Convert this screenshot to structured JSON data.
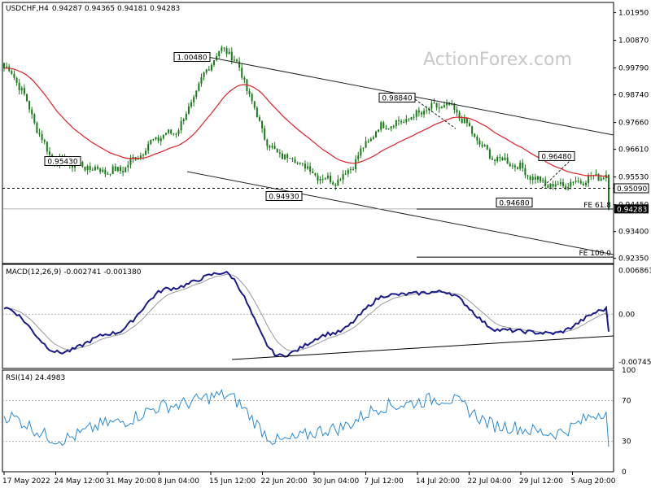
{
  "header": {
    "symbol": "USDCHF,H4",
    "ohlc": "0.94287 0.94365 0.94181 0.94283"
  },
  "watermark": "ActionForex.com",
  "colors": {
    "candle": "#1a7a1a",
    "ma": "#e0202a",
    "trend": "#222222",
    "macd_line": "#1a1a8c",
    "macd_signal": "#9a9a9a",
    "rsi": "#2a8ad6",
    "price_tag_bg": "#000000"
  },
  "price_axis": {
    "ticks": [
      "1.01950",
      "1.00870",
      "0.99790",
      "0.98740",
      "0.97660",
      "0.96610",
      "0.95530",
      "0.94450",
      "0.93400",
      "0.92350"
    ],
    "tick_values": [
      1.0195,
      1.0087,
      0.9979,
      0.9874,
      0.9766,
      0.9661,
      0.9553,
      0.9445,
      0.934,
      0.9235
    ],
    "range": [
      0.9215,
      1.0235
    ],
    "current_level": "0.95090",
    "current_price": "0.94283"
  },
  "annotations": {
    "labels": [
      {
        "text": "1.00480",
        "value": 1.0048,
        "date": "15 Jun"
      },
      {
        "text": "0.98840",
        "value": 0.9884,
        "date": "14 Jul"
      },
      {
        "text": "0.96480",
        "value": 0.9648,
        "date": "2 Aug"
      },
      {
        "text": "0.95430",
        "value": 0.9543,
        "date": "26 May"
      },
      {
        "text": "0.94930",
        "value": 0.9493,
        "date": "30 Jun"
      },
      {
        "text": "0.94680",
        "value": 0.9468,
        "date": "1 Aug"
      }
    ],
    "fib": [
      {
        "text": "FE 61.8",
        "value": 0.9428
      },
      {
        "text": "FE 100.0",
        "value": 0.924
      }
    ]
  },
  "macd": {
    "title": "MACD(12,26,9) -0.002741 -0.001380",
    "ticks": [
      "0.006861",
      "0.00",
      "-0.007454"
    ],
    "tick_values": [
      0.006861,
      0.0,
      -0.007454
    ],
    "range": [
      -0.0085,
      0.0078
    ]
  },
  "rsi": {
    "title": "RSI(14) 24.4983",
    "ticks": [
      "100",
      "70",
      "30",
      "0"
    ],
    "tick_values": [
      100,
      70,
      30,
      0
    ],
    "range": [
      0,
      100
    ]
  },
  "x_axis": {
    "ticks": [
      "17 May 2022",
      "24 May 12:00",
      "31 May 20:00",
      "8 Jun 04:00",
      "15 Jun 12:00",
      "22 Jun 20:00",
      "30 Jun 04:00",
      "7 Jul 12:00",
      "14 Jul 20:00",
      "22 Jul 04:00",
      "29 Jul 12:00",
      "5 Aug 20:00"
    ]
  },
  "chart_data": {
    "type": "line",
    "title": "USDCHF,H4",
    "x": [
      "17 May 2022",
      "24 May 12:00",
      "31 May 20:00",
      "8 Jun 04:00",
      "15 Jun 12:00",
      "22 Jun 20:00",
      "30 Jun 04:00",
      "7 Jul 12:00",
      "14 Jul 20:00",
      "22 Jul 04:00",
      "29 Jul 12:00",
      "5 Aug 20:00"
    ],
    "series": [
      {
        "name": "USDCHF",
        "values": [
          0.9978,
          0.961,
          0.9575,
          0.972,
          1.0048,
          0.964,
          0.954,
          0.976,
          0.983,
          0.962,
          0.952,
          0.956
        ]
      },
      {
        "name": "MACD(12,26,9)",
        "values": [
          0.001,
          -0.006,
          -0.003,
          0.004,
          0.0065,
          -0.0065,
          -0.003,
          0.003,
          0.0035,
          -0.0025,
          -0.003,
          0.0008
        ]
      },
      {
        "name": "RSI(14)",
        "values": [
          55,
          32,
          48,
          65,
          75,
          30,
          42,
          65,
          72,
          45,
          38,
          60
        ]
      }
    ],
    "ylim": [
      0.9215,
      1.0235
    ]
  }
}
